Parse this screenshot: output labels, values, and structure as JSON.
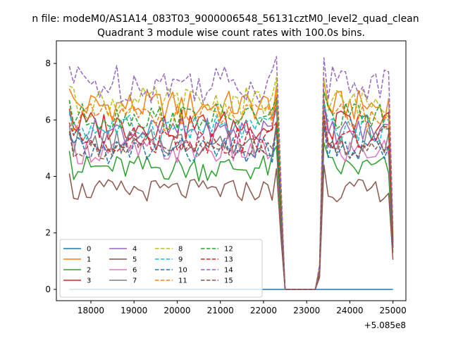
{
  "chart_data": {
    "type": "line",
    "suptitle": "n file: modeM0/AS1A14_083T03_9000006548_56131cztM0_level2_quad_clean",
    "title": "Quadrant 3 module wise count rates with 100.0s bins.",
    "xlabel": "",
    "ylabel": "",
    "x_offset_label": "+5.085e8",
    "xlim": [
      17200,
      25300
    ],
    "ylim": [
      -0.4,
      8.8
    ],
    "x_ticks": [
      18000,
      19000,
      20000,
      21000,
      22000,
      23000,
      24000,
      25000
    ],
    "x_tick_labels": [
      "18000",
      "19000",
      "20000",
      "21000",
      "22000",
      "23000",
      "24000",
      "25000"
    ],
    "y_ticks": [
      0,
      2,
      4,
      6,
      8
    ],
    "y_tick_labels": [
      "0",
      "2",
      "4",
      "6",
      "8"
    ],
    "x_start": 17500,
    "x_step": 100,
    "n_points": 76,
    "gap": {
      "zero_from": 22500,
      "zero_to": 23200
    },
    "legend_loc": "lower left",
    "legend_ncol": 4,
    "series": [
      {
        "name": "0",
        "color": "#1f77b4",
        "style": "solid",
        "level": 0,
        "amp": 0
      },
      {
        "name": "1",
        "color": "#ff7f0e",
        "style": "solid",
        "level": 6.5,
        "amp": 0.35
      },
      {
        "name": "2",
        "color": "#2ca02c",
        "style": "solid",
        "level": 4.3,
        "amp": 0.3
      },
      {
        "name": "3",
        "color": "#d62728",
        "style": "solid",
        "level": 5.8,
        "amp": 0.35
      },
      {
        "name": "4",
        "color": "#9467bd",
        "style": "solid",
        "level": 5.6,
        "amp": 0.3
      },
      {
        "name": "5",
        "color": "#8c564b",
        "style": "solid",
        "level": 3.5,
        "amp": 0.25
      },
      {
        "name": "6",
        "color": "#e377c2",
        "style": "solid",
        "level": 4.9,
        "amp": 0.3
      },
      {
        "name": "7",
        "color": "#7f7f7f",
        "style": "solid",
        "level": 5.2,
        "amp": 0.3
      },
      {
        "name": "8",
        "color": "#bcbd22",
        "style": "dashed",
        "level": 6.6,
        "amp": 0.35
      },
      {
        "name": "9",
        "color": "#17becf",
        "style": "dashed",
        "level": 5.7,
        "amp": 0.3
      },
      {
        "name": "10",
        "color": "#1f77b4",
        "style": "dashed",
        "level": 4.9,
        "amp": 0.3
      },
      {
        "name": "11",
        "color": "#ff7f0e",
        "style": "dashed",
        "level": 6.1,
        "amp": 0.3
      },
      {
        "name": "12",
        "color": "#2ca02c",
        "style": "dashed",
        "level": 6.1,
        "amp": 0.3
      },
      {
        "name": "13",
        "color": "#d62728",
        "style": "dashed",
        "level": 5.3,
        "amp": 0.3
      },
      {
        "name": "14",
        "color": "#9467bd",
        "style": "dashed",
        "level": 7.3,
        "amp": 0.45
      },
      {
        "name": "15",
        "color": "#8c564b",
        "style": "dashed",
        "level": 5.0,
        "amp": 0.25
      }
    ]
  }
}
